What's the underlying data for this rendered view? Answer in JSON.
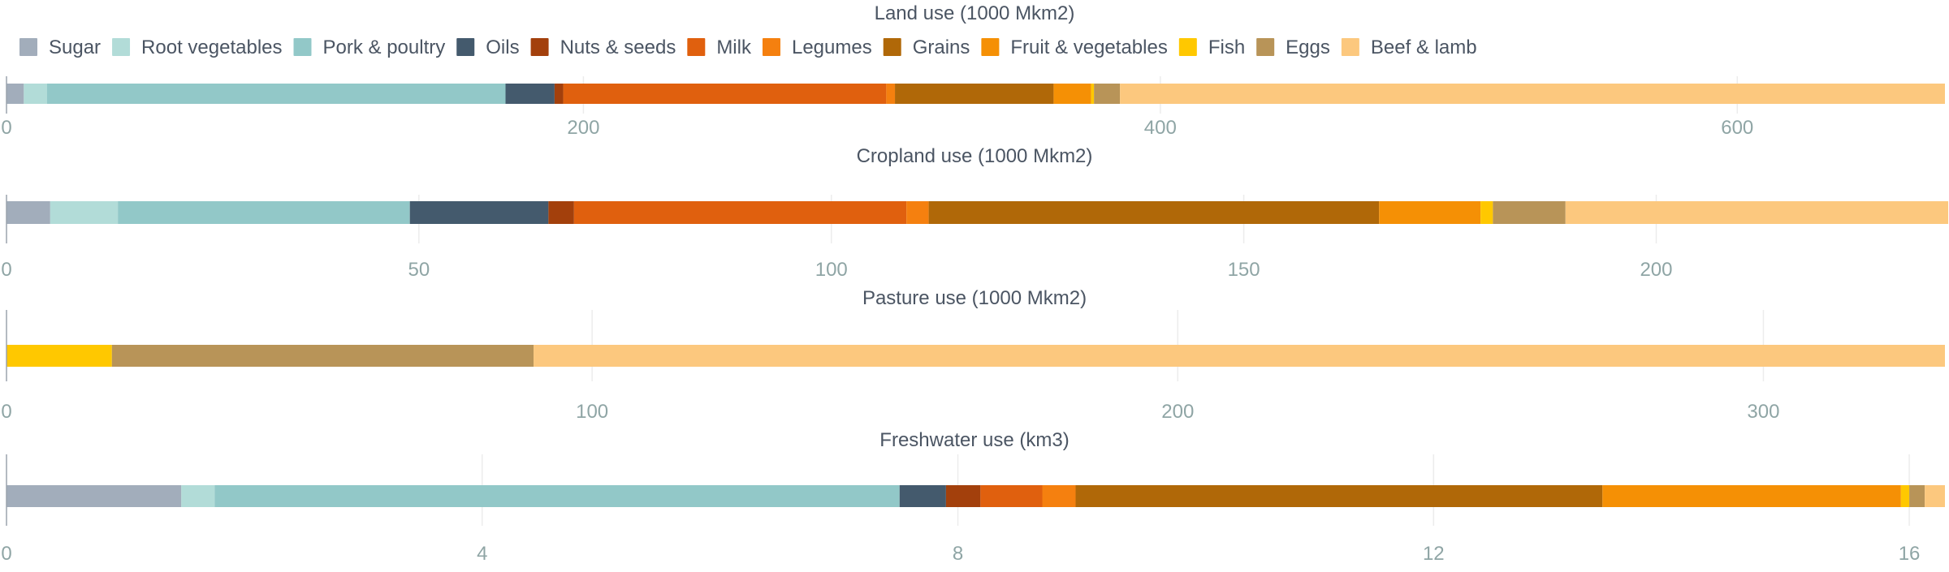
{
  "colors": {
    "Sugar": "#a2adbb",
    "Root vegetables": "#b2dcd8",
    "Pork & poultry": "#92c8c8",
    "Oils": "#445a6d",
    "Nuts & seeds": "#a3400c",
    "Milk": "#e0600e",
    "Legumes": "#f5800f",
    "Grains": "#b06808",
    "Fruit & vegetables": "#f59005",
    "Fish": "#ffc800",
    "Eggs": "#b89458",
    "Beef & lamb": "#fcc87e"
  },
  "chart_data": [
    {
      "type": "bar",
      "orientation": "horizontal-stacked",
      "title": "Land use (1000 Mkm2)",
      "legend": {
        "placement": "top",
        "entries": [
          "Sugar",
          "Root vegetables",
          "Pork & poultry",
          "Oils",
          "Nuts & seeds",
          "Milk",
          "Legumes",
          "Grains",
          "Fruit & vegetables",
          "Fish",
          "Eggs",
          "Beef & lamb"
        ]
      },
      "xlim": [
        0,
        672
      ],
      "ticks": [
        0,
        200,
        400,
        600
      ],
      "grid": true,
      "series": [
        {
          "name": "Sugar",
          "values": [
            6
          ]
        },
        {
          "name": "Root vegetables",
          "values": [
            8
          ]
        },
        {
          "name": "Pork & poultry",
          "values": [
            159
          ]
        },
        {
          "name": "Oils",
          "values": [
            17
          ]
        },
        {
          "name": "Nuts & seeds",
          "values": [
            3
          ]
        },
        {
          "name": "Milk",
          "values": [
            112
          ]
        },
        {
          "name": "Legumes",
          "values": [
            3
          ]
        },
        {
          "name": "Grains",
          "values": [
            55
          ]
        },
        {
          "name": "Fruit & vegetables",
          "values": [
            13
          ]
        },
        {
          "name": "Fish",
          "values": [
            1
          ]
        },
        {
          "name": "Eggs",
          "values": [
            9
          ]
        },
        {
          "name": "Beef & lamb",
          "values": [
            286
          ]
        }
      ]
    },
    {
      "type": "bar",
      "orientation": "horizontal-stacked",
      "title": "Cropland use (1000 Mkm2)",
      "xlim": [
        0,
        235
      ],
      "ticks": [
        0,
        50,
        100,
        150,
        200
      ],
      "grid": true,
      "series": [
        {
          "name": "Sugar",
          "values": [
            5.3
          ]
        },
        {
          "name": "Root vegetables",
          "values": [
            8.2
          ]
        },
        {
          "name": "Pork & poultry",
          "values": [
            35.4
          ]
        },
        {
          "name": "Oils",
          "values": [
            16.8
          ]
        },
        {
          "name": "Nuts & seeds",
          "values": [
            3.1
          ]
        },
        {
          "name": "Milk",
          "values": [
            40.3
          ]
        },
        {
          "name": "Legumes",
          "values": [
            2.7
          ]
        },
        {
          "name": "Grains",
          "values": [
            54.6
          ]
        },
        {
          "name": "Fruit & vegetables",
          "values": [
            12.3
          ]
        },
        {
          "name": "Fish",
          "values": [
            1.5
          ]
        },
        {
          "name": "Eggs",
          "values": [
            8.8
          ]
        },
        {
          "name": "Beef & lamb",
          "values": [
            46.4
          ]
        }
      ]
    },
    {
      "type": "bar",
      "orientation": "horizontal-stacked",
      "title": "Pasture use (1000 Mkm2)",
      "xlim": [
        0,
        331
      ],
      "ticks": [
        0,
        100,
        200,
        300
      ],
      "grid": true,
      "series": [
        {
          "name": "Fish",
          "values": [
            18
          ]
        },
        {
          "name": "Eggs",
          "values": [
            72
          ]
        },
        {
          "name": "Beef & lamb",
          "values": [
            241
          ]
        }
      ]
    },
    {
      "type": "bar",
      "orientation": "horizontal-stacked",
      "title": "Freshwater use (km3)",
      "xlim": [
        0,
        16.3
      ],
      "ticks": [
        0,
        4,
        8,
        12,
        16
      ],
      "grid": true,
      "series": [
        {
          "name": "Sugar",
          "values": [
            1.47
          ]
        },
        {
          "name": "Root vegetables",
          "values": [
            0.28
          ]
        },
        {
          "name": "Pork & poultry",
          "values": [
            5.76
          ]
        },
        {
          "name": "Oils",
          "values": [
            0.39
          ]
        },
        {
          "name": "Nuts & seeds",
          "values": [
            0.29
          ]
        },
        {
          "name": "Milk",
          "values": [
            0.52
          ]
        },
        {
          "name": "Legumes",
          "values": [
            0.28
          ]
        },
        {
          "name": "Grains",
          "values": [
            4.43
          ]
        },
        {
          "name": "Fruit & vegetables",
          "values": [
            2.51
          ]
        },
        {
          "name": "Fish",
          "values": [
            0.07
          ]
        },
        {
          "name": "Eggs",
          "values": [
            0.13
          ]
        },
        {
          "name": "Beef & lamb",
          "values": [
            0.17
          ]
        }
      ]
    }
  ]
}
